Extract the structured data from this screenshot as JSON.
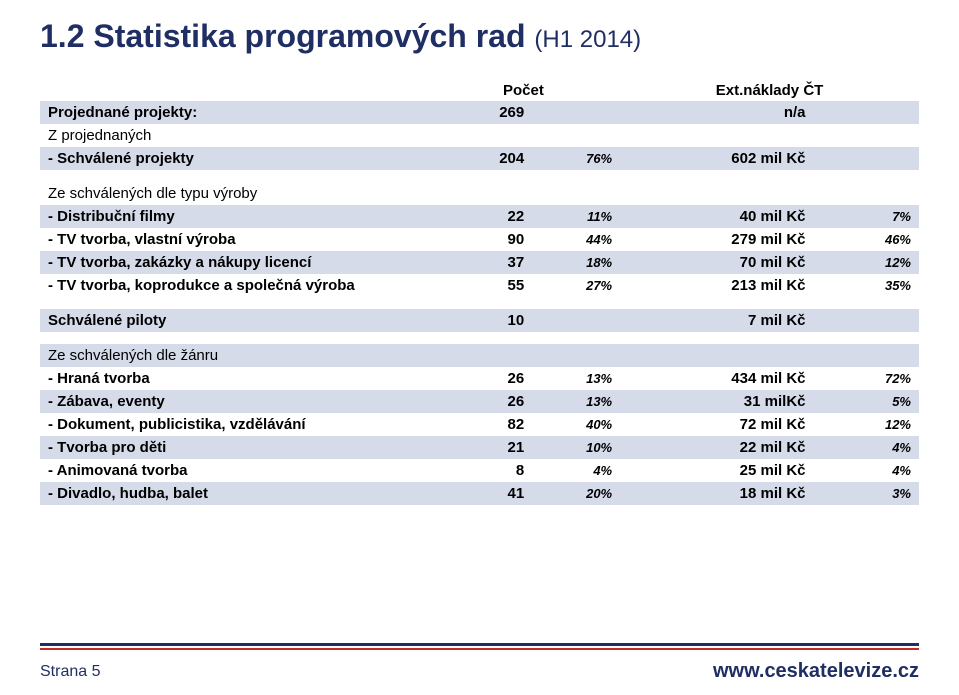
{
  "title_main": "1.2 Statistika programových rad",
  "title_sub": "(H1 2014)",
  "header": {
    "count": "Počet",
    "cost": "Ext.náklady ČT"
  },
  "sections": {
    "top": [
      {
        "label": "Projednané projekty:",
        "count": "269",
        "pct": "",
        "cost": "n/a",
        "cpct": "",
        "bold": true,
        "band": "blue"
      },
      {
        "label": "Z projednaných",
        "count": "",
        "pct": "",
        "cost": "",
        "cpct": "",
        "bold": false,
        "band": "white"
      },
      {
        "label": "- Schválené projekty",
        "count": "204",
        "pct": "76%",
        "cost": "602 mil Kč",
        "cpct": "",
        "bold": true,
        "band": "blue"
      }
    ],
    "typ_vyroby_header": {
      "label": "Ze schválených dle typu výroby",
      "band": "white"
    },
    "typ_vyroby": [
      {
        "label": "- Distribuční filmy",
        "count": "22",
        "pct": "11%",
        "cost": "40 mil Kč",
        "cpct": "7%",
        "bold": true,
        "band": "blue"
      },
      {
        "label": "- TV tvorba, vlastní výroba",
        "count": "90",
        "pct": "44%",
        "cost": "279 mil Kč",
        "cpct": "46%",
        "bold": true,
        "band": "white"
      },
      {
        "label": "- TV tvorba, zakázky a nákupy licencí",
        "count": "37",
        "pct": "18%",
        "cost": "70 mil Kč",
        "cpct": "12%",
        "bold": true,
        "band": "blue"
      },
      {
        "label": "- TV tvorba, koprodukce a společná výroba",
        "count": "55",
        "pct": "27%",
        "cost": "213 mil Kč",
        "cpct": "35%",
        "bold": true,
        "band": "white"
      }
    ],
    "pilots": {
      "label": "Schválené piloty",
      "count": "10",
      "pct": "",
      "cost": "7 mil Kč",
      "cpct": "",
      "bold": true,
      "band": "blue"
    },
    "zanr_header": {
      "label": "Ze schválených dle žánru",
      "band": "blue"
    },
    "zanr": [
      {
        "label": "- Hraná tvorba",
        "count": "26",
        "pct": "13%",
        "cost": "434 mil Kč",
        "cpct": "72%",
        "bold": true,
        "band": "white"
      },
      {
        "label": "- Zábava, eventy",
        "count": "26",
        "pct": "13%",
        "cost": "31 milKč",
        "cpct": "5%",
        "bold": true,
        "band": "blue"
      },
      {
        "label": "- Dokument, publicistika, vzdělávání",
        "count": "82",
        "pct": "40%",
        "cost": "72 mil Kč",
        "cpct": "12%",
        "bold": true,
        "band": "white"
      },
      {
        "label": "- Tvorba pro děti",
        "count": "21",
        "pct": "10%",
        "cost": "22 mil Kč",
        "cpct": "4%",
        "bold": true,
        "band": "blue"
      },
      {
        "label": "- Animovaná tvorba",
        "count": "8",
        "pct": "4%",
        "cost": "25 mil Kč",
        "cpct": "4%",
        "bold": true,
        "band": "white"
      },
      {
        "label": "- Divadlo, hudba, balet",
        "count": "41",
        "pct": "20%",
        "cost": "18 mil Kč",
        "cpct": "3%",
        "bold": true,
        "band": "blue"
      }
    ]
  },
  "footer": {
    "page_label": "Strana 5",
    "url": "www.ceskatelevize.cz"
  },
  "colors": {
    "title": "#1f2e63",
    "band_blue": "#d5dbe9",
    "rule_blue": "#1f2e63",
    "rule_red": "#c22d20",
    "bg": "#ffffff"
  }
}
